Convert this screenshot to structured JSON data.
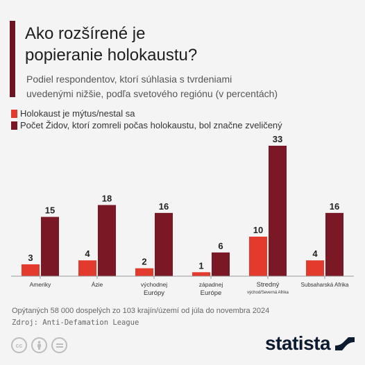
{
  "title": {
    "line1": "Ako rozšírené je",
    "line2": "popieranie holokaustu?"
  },
  "subtitle": {
    "line1": "Podiel respondentov, ktorí súhlasia s tvrdeniami",
    "line2": "uvedenými nižšie, podľa svetového regiónu (v percentách)"
  },
  "colors": {
    "series1": "#e23b2e",
    "series2": "#7a1826",
    "accent_bar": "#6b1422",
    "brand": "#0d1b2e"
  },
  "chart_data": {
    "type": "bar",
    "categories": [
      "Ameriky",
      "Ázie",
      "východnej Európy",
      "západnej Európe",
      "Stredný východ/Severná Afrika",
      "Subsaharská Afrika"
    ],
    "category_labels": [
      {
        "line1": "Ameriky",
        "line2": ""
      },
      {
        "line1": "Ázie",
        "line2": ""
      },
      {
        "line1": "východnej",
        "line2": "Európy"
      },
      {
        "line1": "západnej",
        "line2": "Európe"
      },
      {
        "line1": "Stredný",
        "line2": "východ/Severná Afrika"
      },
      {
        "line1": "Subsaharská Afrika",
        "line2": ""
      }
    ],
    "series": [
      {
        "name": "Holokaust je mýtus/nestal sa",
        "values": [
          3,
          4,
          2,
          1,
          10,
          4
        ]
      },
      {
        "name": "Počet Židov, ktorí zomreli počas holokaustu, bol značne zveličený",
        "values": [
          15,
          18,
          16,
          6,
          33,
          16
        ]
      }
    ],
    "ylim": [
      0,
      33
    ],
    "grid": false,
    "legend": "top-left",
    "data_labels": true
  },
  "footer": {
    "note": "Opýtaných 58 000 dospelých zo 103 krajín/území od júla do novembra 2024",
    "source": "Zdroj: Anti-Defamation League"
  },
  "license_icons": [
    "cc",
    "by",
    "nd"
  ],
  "brand": {
    "name": "statista",
    "icon": "statista-logo-icon"
  }
}
